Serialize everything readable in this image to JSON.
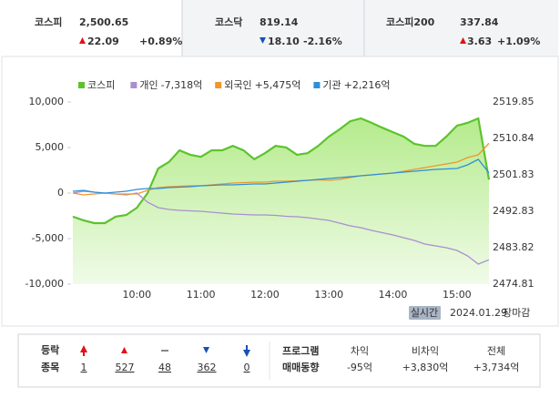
{
  "tabs": [
    {
      "name": "코스피",
      "value": "2,500.65",
      "change": "22.09",
      "rate": "+0.89%",
      "direction": "up"
    },
    {
      "name": "코스닥",
      "value": "819.14",
      "change": "18.10",
      "rate": "-2.16%",
      "direction": "down"
    },
    {
      "name": "코스피200",
      "value": "337.84",
      "change": "3.63",
      "rate": "+1.09%",
      "direction": "up"
    }
  ],
  "chart_data": {
    "type": "line",
    "x": [
      "09:00",
      "09:10",
      "09:20",
      "09:30",
      "09:40",
      "09:50",
      "10:00",
      "10:10",
      "10:20",
      "10:30",
      "10:40",
      "10:50",
      "11:00",
      "11:10",
      "11:20",
      "11:30",
      "11:40",
      "11:50",
      "12:00",
      "12:10",
      "12:20",
      "12:30",
      "12:40",
      "12:50",
      "13:00",
      "13:10",
      "13:20",
      "13:30",
      "13:40",
      "13:50",
      "14:00",
      "14:10",
      "14:20",
      "14:30",
      "14:40",
      "14:50",
      "15:00",
      "15:10",
      "15:20",
      "15:30"
    ],
    "xlim": [
      "09:00",
      "15:30"
    ],
    "xticks": [
      "10:00",
      "11:00",
      "12:00",
      "13:00",
      "14:00",
      "15:00"
    ],
    "ylim": [
      -10000,
      10000
    ],
    "yticks": [
      {
        "value": 10000,
        "label": "10,000"
      },
      {
        "value": 5000,
        "label": "5,000"
      },
      0,
      {
        "value": -5000,
        "label": "-5,000"
      },
      {
        "value": -10000,
        "label": "-10,000"
      }
    ],
    "y2lim": [
      2474.81,
      2519.85
    ],
    "y2ticks": [
      2519.85,
      2510.84,
      2501.83,
      2492.83,
      2483.82,
      2474.81
    ],
    "y2_reference": 2478.56,
    "series": [
      {
        "name": "코스피",
        "color": "#5cc32d",
        "axis": "y2",
        "area": true,
        "values": [
          2491.5,
          2490.6,
          2489.9,
          2489.9,
          2491.5,
          2491.9,
          2493.7,
          2497.3,
          2503.4,
          2505.0,
          2507.9,
          2506.8,
          2506.3,
          2507.9,
          2507.9,
          2509.0,
          2507.9,
          2505.7,
          2507.2,
          2509.0,
          2508.6,
          2506.8,
          2507.2,
          2509.0,
          2511.3,
          2513.1,
          2515.1,
          2515.8,
          2514.7,
          2513.5,
          2512.4,
          2511.3,
          2509.5,
          2509.0,
          2509.0,
          2511.3,
          2514.0,
          2514.7,
          2515.8,
          2500.65
        ]
      },
      {
        "name": "개인",
        "legend_label": "-7,318억",
        "color": "#a98fd0",
        "values": [
          0,
          200,
          100,
          0,
          -100,
          -200,
          0,
          -1000,
          -1600,
          -1800,
          -1900,
          -1950,
          -2000,
          -2100,
          -2200,
          -2300,
          -2350,
          -2400,
          -2400,
          -2450,
          -2550,
          -2600,
          -2700,
          -2850,
          -3000,
          -3300,
          -3600,
          -3800,
          -4100,
          -4350,
          -4600,
          -4900,
          -5200,
          -5600,
          -5800,
          -6000,
          -6300,
          -6900,
          -7800,
          -7318
        ]
      },
      {
        "name": "외국인",
        "legend_label": "+5,475억",
        "color": "#f0962a",
        "values": [
          0,
          -200,
          -100,
          0,
          -100,
          -100,
          -100,
          300,
          600,
          700,
          750,
          800,
          800,
          900,
          1000,
          1100,
          1150,
          1200,
          1200,
          1300,
          1300,
          1350,
          1400,
          1450,
          1400,
          1500,
          1700,
          1900,
          2000,
          2100,
          2200,
          2400,
          2600,
          2800,
          3000,
          3200,
          3400,
          3900,
          4200,
          5475
        ]
      },
      {
        "name": "기관",
        "legend_label": "+2,216억",
        "color": "#2f8fd8",
        "values": [
          200,
          300,
          100,
          0,
          100,
          200,
          400,
          500,
          500,
          600,
          650,
          700,
          800,
          850,
          900,
          900,
          950,
          1000,
          1000,
          1100,
          1200,
          1300,
          1400,
          1500,
          1600,
          1700,
          1800,
          1900,
          2000,
          2100,
          2200,
          2300,
          2400,
          2500,
          2600,
          2650,
          2700,
          3100,
          3700,
          2216
        ]
      }
    ]
  },
  "status": {
    "badge": "실시간",
    "date": "2024.01.29",
    "state": "장마감"
  },
  "breadth": {
    "label1": "등락",
    "label2": "종목",
    "items": [
      {
        "value": "1",
        "kind": "limit-up"
      },
      {
        "value": "527",
        "kind": "up"
      },
      {
        "value": "48",
        "kind": "flat"
      },
      {
        "value": "362",
        "kind": "down"
      },
      {
        "value": "0",
        "kind": "limit-down"
      }
    ]
  },
  "program": {
    "label1": "프로그램",
    "label2": "매매동향",
    "columns": [
      {
        "name": "차익",
        "value": "-95억"
      },
      {
        "name": "비차익",
        "value": "+3,830억"
      },
      {
        "name": "전체",
        "value": "+3,734억"
      }
    ]
  }
}
